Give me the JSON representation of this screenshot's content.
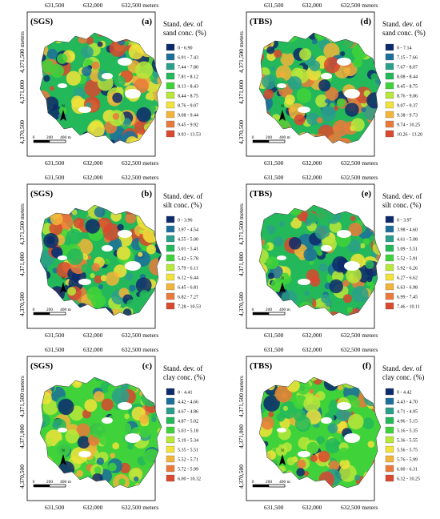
{
  "tick_labels": {
    "x": [
      "631,500",
      "632,000",
      "632,500 meters"
    ],
    "y": [
      "4,371,500 meters",
      "4,371,000",
      "4,370,500"
    ]
  },
  "scale_bar": {
    "labels": [
      "0",
      "200",
      "400 m"
    ]
  },
  "north_arrow": {
    "label": "N",
    "icon": "north-arrow-icon"
  },
  "palette": [
    "#0d2a6b",
    "#1c6f9a",
    "#2a9f8a",
    "#23b85a",
    "#3fd23a",
    "#b8e83a",
    "#f2e33a",
    "#f2b43a",
    "#ea7a3a",
    "#d9482f"
  ],
  "panels": [
    {
      "id": "a",
      "method": "SGS",
      "letter": "(a)",
      "legend_title": [
        "Stand. dev. of",
        "sand conc. (%)"
      ],
      "classes": [
        "0  -  6.90",
        "6.91 -  7.43",
        "7.44 -  7.80",
        "7.81 -  8.12",
        "8.13 -  8.43",
        "8.44 -  8.75",
        "8.76 -  9.07",
        "9.08 -  9.44",
        "9.45 -  9.92",
        "9.93 - 13.53"
      ]
    },
    {
      "id": "d",
      "method": "TBS",
      "letter": "(d)",
      "legend_title": [
        "Stand. dev. of",
        "sand conc. (%)"
      ],
      "classes": [
        "0  -  7.14",
        "7.15 -  7.66",
        "7.67 -  8.07",
        "8.08 -  8.44",
        "8.45 -  8.75",
        "8.76 -  9.06",
        "9.07 -  9.37",
        "9.38 -  9.73",
        "9.74 - 10.25",
        "10.26 - 13.20"
      ]
    },
    {
      "id": "b",
      "method": "SGS",
      "letter": "(b)",
      "legend_title": [
        "Stand. dev. of",
        "silt conc. (%)"
      ],
      "classes": [
        "0  -  3.96",
        "3.97 -  4.54",
        "4.55 -  5.00",
        "5.01 -  5.41",
        "5.42 -  5.78",
        "5.79 -  6.11",
        "6.12 -  6.44",
        "6.45 -  6.81",
        "6.82 -  7.27",
        "7.28 - 10.53"
      ]
    },
    {
      "id": "e",
      "method": "TBS",
      "letter": "(e)",
      "legend_title": [
        "Stand. dev. of",
        "silt conc. (%)"
      ],
      "classes": [
        "0  -  3.97",
        "3.98 -  4.60",
        "4.61 -  5.08",
        "5.09 -  5.51",
        "5.52 -  5.91",
        "5.92 -  6.26",
        "6.27 -  6.62",
        "6.63 -  6.98",
        "6.99 -  7.45",
        "7.46 - 10.11"
      ]
    },
    {
      "id": "c",
      "method": "SGS",
      "letter": "(c)",
      "legend_title": [
        "Stand. dev. of",
        "clay conc. (%)"
      ],
      "classes": [
        "0  -  4.41",
        "4.42 -  4.66",
        "4.67 -  4.86",
        "4.87 -  5.02",
        "5.03 -  5.18",
        "5.19 -  5.34",
        "5.35 -  5.51",
        "5.52 -  5.71",
        "5.72 -  5.99",
        "6.00 - 10.32"
      ]
    },
    {
      "id": "f",
      "method": "TBS",
      "letter": "(f)",
      "legend_title": [
        "Stand. dev. of",
        "clay conc. (%)"
      ],
      "classes": [
        "0  -  4.42",
        "4.43 -  4.70",
        "4.71 -  4.95",
        "4.96 -  5.15",
        "5.16 -  5.35",
        "5.36 -  5.55",
        "5.56 -  5.75",
        "5.76 -  5.99",
        "6.00 -  6.31",
        "6.32 - 10.25"
      ]
    }
  ]
}
